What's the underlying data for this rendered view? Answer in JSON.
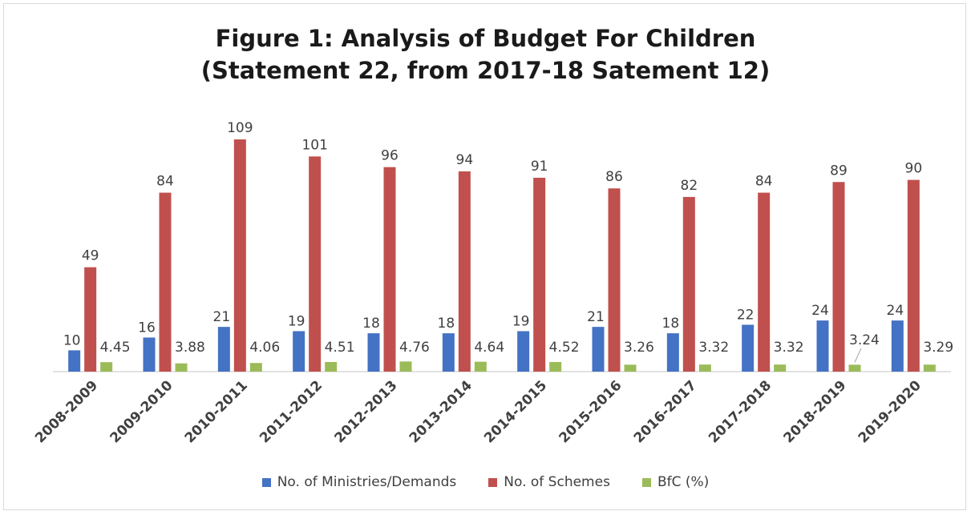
{
  "chart_data": {
    "type": "bar",
    "title_line1": "Figure 1: Analysis of Budget For Children",
    "title_line2": "(Statement 22, from 2017-18 Satement 12)",
    "categories": [
      "2008-2009",
      "2009-2010",
      "2010-2011",
      "2011-2012",
      "2012-2013",
      "2013-2014",
      "2014-2015",
      "2015-2016",
      "2016-2017",
      "2017-2018",
      "2018-2019",
      "2019-2020"
    ],
    "series": [
      {
        "name": "No. of Ministries/Demands",
        "color": "#4472C4",
        "values": [
          10,
          16,
          21,
          19,
          18,
          18,
          19,
          21,
          18,
          22,
          24,
          24
        ]
      },
      {
        "name": "No. of Schemes",
        "color": "#C0504D",
        "values": [
          49,
          84,
          109,
          101,
          96,
          94,
          91,
          86,
          82,
          84,
          89,
          90
        ]
      },
      {
        "name": "BfC (%)",
        "color": "#9BBB59",
        "values": [
          4.45,
          3.88,
          4.06,
          4.51,
          4.76,
          4.64,
          4.52,
          3.26,
          3.32,
          3.32,
          3.24,
          3.29
        ]
      }
    ],
    "ylim": [
      0,
      110
    ],
    "xlabel": "",
    "ylabel": "",
    "grid": false,
    "legend_position": "bottom"
  }
}
